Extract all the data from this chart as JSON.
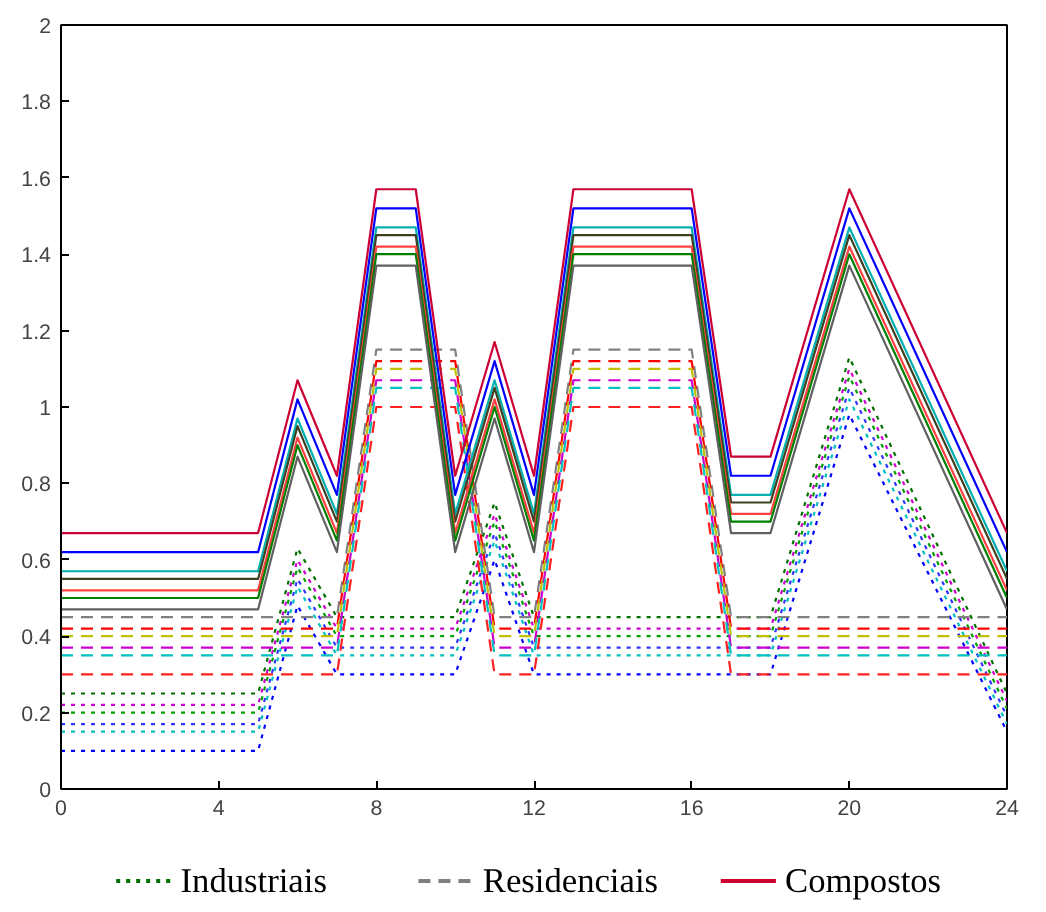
{
  "chart_data": {
    "type": "line",
    "xlim": [
      0,
      24
    ],
    "ylim": [
      0,
      2
    ],
    "xticks": [
      0,
      4,
      8,
      12,
      16,
      20,
      24
    ],
    "yticks": [
      0,
      0.2,
      0.4,
      0.6,
      0.8,
      1,
      1.2,
      1.4,
      1.6,
      1.8,
      2
    ],
    "grid": false,
    "legend": "bottom",
    "marker": "none",
    "series": [
      {
        "name": "Industriais",
        "line_style": "dotted",
        "color": "#007000",
        "x": [
          0,
          5,
          6,
          7,
          10,
          11,
          12,
          18,
          20,
          24
        ],
        "values": [
          0.25,
          0.25,
          0.63,
          0.45,
          0.45,
          0.75,
          0.45,
          0.45,
          1.13,
          0.25
        ]
      },
      {
        "line_style": "dotted",
        "color": "#cc00cc",
        "x": [
          0,
          5,
          6,
          7,
          10,
          11,
          12,
          18,
          20,
          24
        ],
        "values": [
          0.22,
          0.22,
          0.6,
          0.42,
          0.42,
          0.72,
          0.42,
          0.42,
          1.1,
          0.23
        ]
      },
      {
        "line_style": "dotted",
        "color": "#00a000",
        "x": [
          0,
          5,
          6,
          7,
          10,
          11,
          12,
          18,
          20,
          24
        ],
        "values": [
          0.2,
          0.2,
          0.58,
          0.4,
          0.4,
          0.7,
          0.4,
          0.4,
          1.08,
          0.21
        ]
      },
      {
        "line_style": "dotted",
        "color": "#3333ff",
        "x": [
          0,
          5,
          6,
          7,
          10,
          11,
          12,
          18,
          20,
          24
        ],
        "values": [
          0.17,
          0.17,
          0.55,
          0.37,
          0.37,
          0.67,
          0.37,
          0.37,
          1.05,
          0.19
        ]
      },
      {
        "line_style": "dotted",
        "color": "#00c0c0",
        "x": [
          0,
          5,
          6,
          7,
          10,
          11,
          12,
          18,
          20,
          24
        ],
        "values": [
          0.15,
          0.15,
          0.53,
          0.35,
          0.35,
          0.65,
          0.35,
          0.35,
          1.02,
          0.17
        ]
      },
      {
        "line_style": "dotted",
        "color": "#0000ff",
        "x": [
          0,
          5,
          6,
          7,
          10,
          11,
          12,
          18,
          20,
          24
        ],
        "values": [
          0.1,
          0.1,
          0.48,
          0.3,
          0.3,
          0.6,
          0.3,
          0.3,
          0.98,
          0.15
        ]
      },
      {
        "name": "Residenciais",
        "line_style": "dashed",
        "color": "#808080",
        "x": [
          0,
          7,
          8,
          10,
          11,
          12,
          13,
          16,
          17,
          24
        ],
        "values": [
          0.45,
          0.45,
          1.15,
          1.15,
          0.45,
          0.45,
          1.15,
          1.15,
          0.45,
          0.45
        ]
      },
      {
        "line_style": "dashed",
        "color": "#ff0000",
        "x": [
          0,
          7,
          8,
          10,
          11,
          12,
          13,
          16,
          17,
          24
        ],
        "values": [
          0.42,
          0.42,
          1.12,
          1.12,
          0.42,
          0.42,
          1.12,
          1.12,
          0.42,
          0.42
        ]
      },
      {
        "line_style": "dashed",
        "color": "#c0c000",
        "x": [
          0,
          7,
          8,
          10,
          11,
          12,
          13,
          16,
          17,
          24
        ],
        "values": [
          0.4,
          0.4,
          1.1,
          1.1,
          0.4,
          0.4,
          1.1,
          1.1,
          0.4,
          0.4
        ]
      },
      {
        "line_style": "dashed",
        "color": "#cc00cc",
        "x": [
          0,
          7,
          8,
          10,
          11,
          12,
          13,
          16,
          17,
          24
        ],
        "values": [
          0.37,
          0.37,
          1.07,
          1.07,
          0.37,
          0.37,
          1.07,
          1.07,
          0.37,
          0.37
        ]
      },
      {
        "line_style": "dashed",
        "color": "#00c0c0",
        "x": [
          0,
          7,
          8,
          10,
          11,
          12,
          13,
          16,
          17,
          24
        ],
        "values": [
          0.35,
          0.35,
          1.05,
          1.05,
          0.35,
          0.35,
          1.05,
          1.05,
          0.35,
          0.35
        ]
      },
      {
        "line_style": "dashed",
        "color": "#ff2020",
        "x": [
          0,
          7,
          8,
          10,
          11,
          12,
          13,
          16,
          17,
          24
        ],
        "values": [
          0.3,
          0.3,
          1.0,
          1.0,
          0.3,
          0.3,
          1.0,
          1.0,
          0.3,
          0.3
        ]
      },
      {
        "name": "Compostos",
        "line_style": "solid",
        "color": "#cc0033",
        "x": [
          0,
          5,
          6,
          7,
          8,
          9,
          10,
          11,
          12,
          13,
          16,
          17,
          18,
          20,
          24
        ],
        "values": [
          0.67,
          0.67,
          1.07,
          0.82,
          1.57,
          1.57,
          0.82,
          1.17,
          0.82,
          1.57,
          1.57,
          0.87,
          0.87,
          1.57,
          0.67
        ]
      },
      {
        "line_style": "solid",
        "color": "#0000ff",
        "x": [
          0,
          5,
          6,
          7,
          8,
          9,
          10,
          11,
          12,
          13,
          16,
          17,
          18,
          20,
          24
        ],
        "values": [
          0.62,
          0.62,
          1.02,
          0.77,
          1.52,
          1.52,
          0.77,
          1.12,
          0.77,
          1.52,
          1.52,
          0.82,
          0.82,
          1.52,
          0.62
        ]
      },
      {
        "line_style": "solid",
        "color": "#00b0b0",
        "x": [
          0,
          5,
          6,
          7,
          8,
          9,
          10,
          11,
          12,
          13,
          16,
          17,
          18,
          20,
          24
        ],
        "values": [
          0.57,
          0.57,
          0.97,
          0.72,
          1.47,
          1.47,
          0.72,
          1.07,
          0.72,
          1.47,
          1.47,
          0.77,
          0.77,
          1.47,
          0.57
        ]
      },
      {
        "line_style": "solid",
        "color": "#404020",
        "x": [
          0,
          5,
          6,
          7,
          8,
          9,
          10,
          11,
          12,
          13,
          16,
          17,
          18,
          20,
          24
        ],
        "values": [
          0.55,
          0.55,
          0.95,
          0.7,
          1.45,
          1.45,
          0.7,
          1.05,
          0.7,
          1.45,
          1.45,
          0.75,
          0.75,
          1.45,
          0.55
        ]
      },
      {
        "line_style": "solid",
        "color": "#ff4040",
        "x": [
          0,
          5,
          6,
          7,
          8,
          9,
          10,
          11,
          12,
          13,
          16,
          17,
          18,
          20,
          24
        ],
        "values": [
          0.52,
          0.52,
          0.92,
          0.67,
          1.42,
          1.42,
          0.67,
          1.02,
          0.67,
          1.42,
          1.42,
          0.72,
          0.72,
          1.42,
          0.52
        ]
      },
      {
        "line_style": "solid",
        "color": "#008000",
        "x": [
          0,
          5,
          6,
          7,
          8,
          9,
          10,
          11,
          12,
          13,
          16,
          17,
          18,
          20,
          24
        ],
        "values": [
          0.5,
          0.5,
          0.9,
          0.65,
          1.4,
          1.4,
          0.65,
          1.0,
          0.65,
          1.4,
          1.4,
          0.7,
          0.7,
          1.4,
          0.5
        ]
      },
      {
        "line_style": "solid",
        "color": "#606060",
        "x": [
          0,
          5,
          6,
          7,
          8,
          9,
          10,
          11,
          12,
          13,
          16,
          17,
          18,
          20,
          24
        ],
        "values": [
          0.47,
          0.47,
          0.87,
          0.62,
          1.37,
          1.37,
          0.62,
          0.97,
          0.62,
          1.37,
          1.37,
          0.67,
          0.67,
          1.37,
          0.47
        ]
      }
    ]
  }
}
